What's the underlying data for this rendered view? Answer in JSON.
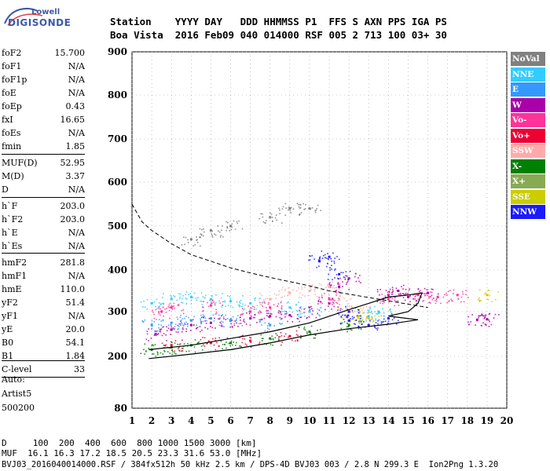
{
  "logo": {
    "line1": "Lowell",
    "line2": "DIGISONDE"
  },
  "header": {
    "row1": "Station    YYYY DAY   DDD HHMMSS P1  FFS S AXN PPS IGA PS",
    "row2": "Boa Vista  2016 Feb09 040 014000 RSF 005 2 713 100 03+ 30"
  },
  "params": [
    {
      "label": "foF2",
      "value": "15.700"
    },
    {
      "label": "foF1",
      "value": "N/A"
    },
    {
      "label": "foF1p",
      "value": "N/A"
    },
    {
      "label": "foE",
      "value": "N/A"
    },
    {
      "label": "foEp",
      "value": "0.43"
    },
    {
      "label": "fxI",
      "value": "16.65"
    },
    {
      "label": "foEs",
      "value": "N/A"
    },
    {
      "label": "fmin",
      "value": "1.85"
    },
    {
      "label": "MUF(D)",
      "value": "52.95"
    },
    {
      "label": "M(D)",
      "value": "3.37"
    },
    {
      "label": "D",
      "value": "N/A"
    },
    {
      "label": "h`F",
      "value": "203.0"
    },
    {
      "label": "h`F2",
      "value": "203.0"
    },
    {
      "label": "h`E",
      "value": "N/A"
    },
    {
      "label": "h`Es",
      "value": "N/A"
    },
    {
      "label": "hmF2",
      "value": "281.8"
    },
    {
      "label": "hmF1",
      "value": "N/A"
    },
    {
      "label": "hmE",
      "value": "110.0"
    },
    {
      "label": "yF2",
      "value": "51.4"
    },
    {
      "label": "yF1",
      "value": "N/A"
    },
    {
      "label": "yE",
      "value": "20.0"
    },
    {
      "label": "B0",
      "value": "54.1"
    },
    {
      "label": "B1",
      "value": "1.84"
    },
    {
      "label": "C-level",
      "value": "33"
    }
  ],
  "auto": {
    "line1": "Auto:",
    "line2": "Artist5",
    "line3": "500200"
  },
  "legend": [
    {
      "label": "NoVal",
      "color": "#808080"
    },
    {
      "label": "NNE",
      "color": "#33ccff"
    },
    {
      "label": "E",
      "color": "#3399ff"
    },
    {
      "label": "W",
      "color": "#aa00aa"
    },
    {
      "label": "Vo-",
      "color": "#ff3399"
    },
    {
      "label": "Vo+",
      "color": "#ee0033"
    },
    {
      "label": "SSW",
      "color": "#ffaaaa"
    },
    {
      "label": "X-",
      "color": "#008000"
    },
    {
      "label": "X+",
      "color": "#88aa55"
    },
    {
      "label": "SSE",
      "color": "#cccc00"
    },
    {
      "label": "NNW",
      "color": "#1a1aff"
    }
  ],
  "footer": {
    "row1": "D     100  200  400  600  800 1000 1500 3000 [km]",
    "row2": "MUF  16.1 16.3 17.2 18.5 20.5 23.3 31.6 53.0 [MHz]",
    "row3": "BVJ03_2016040014000.RSF / 384fx512h 50 kHz 2.5 km / DPS-4D BVJ03 003 / 2.8 N 299.3 E  Ion2Png 1.3.20"
  },
  "chart_data": {
    "type": "scatter",
    "xlim": [
      1,
      20
    ],
    "ylim": [
      80,
      900
    ],
    "x_ticks": [
      1,
      2,
      3,
      4,
      5,
      6,
      7,
      8,
      9,
      10,
      11,
      12,
      13,
      14,
      15,
      16,
      17,
      18,
      19,
      20
    ],
    "y_ticks": [
      80,
      200,
      300,
      400,
      500,
      600,
      700,
      800,
      900
    ],
    "grid": true,
    "clusters": [
      {
        "name": "W",
        "color": "#aa00aa",
        "points": [
          [
            2.2,
            250
          ],
          [
            3,
            260
          ],
          [
            4,
            270
          ],
          [
            5,
            275
          ],
          [
            6,
            280
          ],
          [
            7,
            285
          ],
          [
            8,
            290
          ],
          [
            9,
            292
          ],
          [
            10,
            300
          ],
          [
            11,
            320
          ],
          [
            11.5,
            360
          ],
          [
            12,
            380
          ],
          [
            14,
            340
          ],
          [
            14.5,
            350
          ],
          [
            15,
            335
          ],
          [
            16,
            345
          ],
          [
            18.5,
            282
          ],
          [
            19,
            283
          ]
        ]
      },
      {
        "name": "NNE",
        "color": "#33ccff",
        "points": [
          [
            2,
            320
          ],
          [
            3,
            330
          ],
          [
            4,
            335
          ],
          [
            5,
            330
          ],
          [
            6,
            325
          ],
          [
            7,
            320
          ],
          [
            9,
            310
          ],
          [
            10,
            300
          ],
          [
            13,
            290
          ],
          [
            13.5,
            300
          ]
        ]
      },
      {
        "name": "E",
        "color": "#3399ff",
        "points": [
          [
            2,
            270
          ],
          [
            3,
            275
          ],
          [
            4,
            280
          ],
          [
            5,
            285
          ],
          [
            6,
            280
          ],
          [
            8,
            270
          ]
        ]
      },
      {
        "name": "Vo-",
        "color": "#ff3399",
        "points": [
          [
            2.5,
            300
          ],
          [
            3,
            310
          ],
          [
            5,
            315
          ],
          [
            7,
            300
          ],
          [
            8,
            310
          ],
          [
            11,
            330
          ],
          [
            14,
            330
          ],
          [
            15.5,
            340
          ],
          [
            16.5,
            335
          ],
          [
            17.5,
            340
          ]
        ]
      },
      {
        "name": "Vo+",
        "color": "#ee0033",
        "points": [
          [
            3,
            225
          ],
          [
            5,
            230
          ],
          [
            7,
            235
          ],
          [
            9,
            245
          ]
        ]
      },
      {
        "name": "SSW",
        "color": "#ffaaaa",
        "points": [
          [
            8,
            330
          ],
          [
            9,
            345
          ],
          [
            10,
            350
          ],
          [
            11,
            360
          ],
          [
            11.5,
            330
          ],
          [
            12.5,
            300
          ]
        ]
      },
      {
        "name": "X-",
        "color": "#008000",
        "points": [
          [
            2,
            215
          ],
          [
            3,
            220
          ],
          [
            4,
            225
          ],
          [
            6,
            230
          ],
          [
            8,
            240
          ],
          [
            10,
            255
          ],
          [
            12,
            270
          ]
        ]
      },
      {
        "name": "SSE",
        "color": "#cccc00",
        "points": [
          [
            12,
            300
          ],
          [
            12.5,
            290
          ],
          [
            13,
            285
          ],
          [
            19,
            340
          ]
        ]
      },
      {
        "name": "NNW",
        "color": "#1a1aff",
        "points": [
          [
            10.5,
            420
          ],
          [
            11,
            430
          ],
          [
            11.5,
            390
          ],
          [
            12,
            300
          ],
          [
            12,
            280
          ],
          [
            13,
            270
          ],
          [
            14,
            285
          ]
        ]
      },
      {
        "name": "NoVal",
        "color": "#808080",
        "points": [
          [
            4,
            470
          ],
          [
            5,
            490
          ],
          [
            6,
            500
          ],
          [
            8,
            520
          ],
          [
            9,
            540
          ],
          [
            10,
            540
          ]
        ]
      }
    ],
    "profile_lower": [
      [
        1.85,
        195
      ],
      [
        4,
        205
      ],
      [
        6,
        215
      ],
      [
        8,
        230
      ],
      [
        10,
        248
      ],
      [
        12,
        262
      ],
      [
        14,
        272
      ],
      [
        15.5,
        282
      ]
    ],
    "profile_upper": [
      [
        1.85,
        215
      ],
      [
        4,
        225
      ],
      [
        6,
        240
      ],
      [
        8,
        255
      ],
      [
        10,
        275
      ],
      [
        12,
        305
      ],
      [
        13,
        320
      ],
      [
        14,
        335
      ],
      [
        15,
        340
      ],
      [
        15.7,
        345
      ],
      [
        15.5,
        320
      ],
      [
        15,
        300
      ],
      [
        14,
        290
      ],
      [
        15.5,
        282
      ]
    ],
    "muf_dashed": [
      [
        1,
        550
      ],
      [
        1.5,
        510
      ],
      [
        2,
        490
      ],
      [
        3,
        460
      ],
      [
        4,
        435
      ],
      [
        5,
        420
      ],
      [
        6,
        405
      ],
      [
        7,
        393
      ],
      [
        8,
        382
      ],
      [
        9,
        372
      ],
      [
        10,
        362
      ],
      [
        11,
        350
      ],
      [
        12,
        342
      ],
      [
        13,
        334
      ],
      [
        14,
        326
      ],
      [
        15,
        318
      ],
      [
        16,
        310
      ]
    ]
  }
}
